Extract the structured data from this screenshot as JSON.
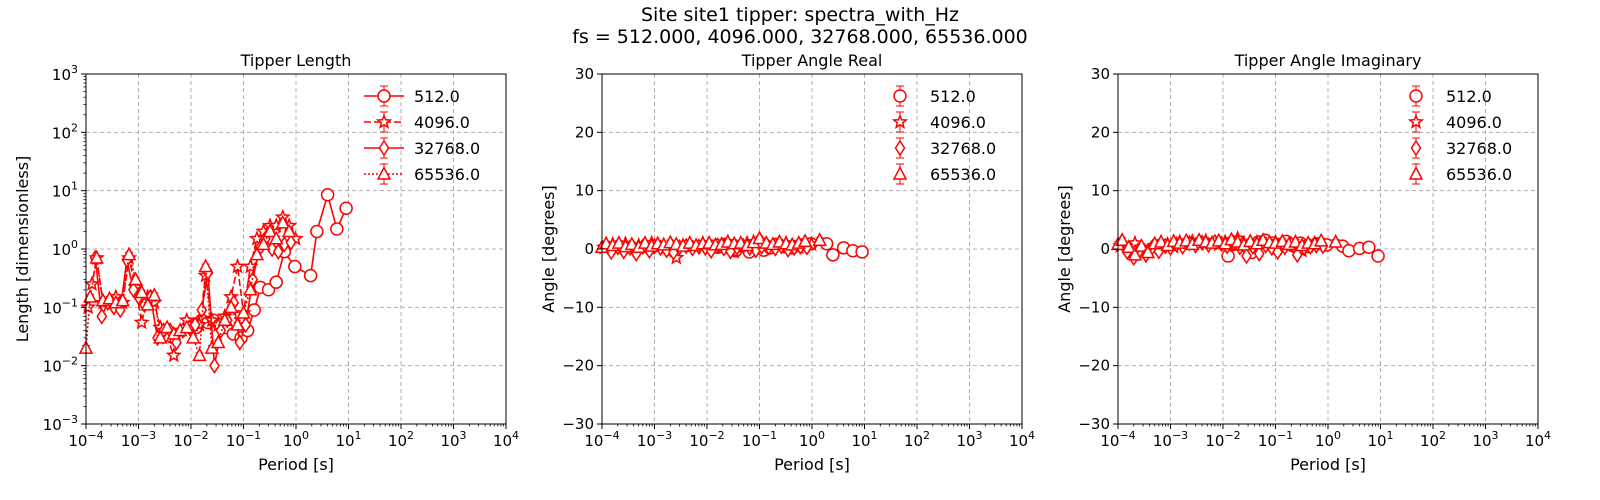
{
  "figure": {
    "title_line1": "Site site1 tipper: spectra_with_Hz",
    "title_line2": "fs = 512.000, 4096.000, 32768.000, 65536.000"
  },
  "colors": {
    "series": "#ff0000",
    "grid": "#b0b0b0",
    "axis": "#000000"
  },
  "chart_data": [
    {
      "type": "line",
      "title": "Tipper Length",
      "xlabel": "Period [s]",
      "ylabel": "Length [dimensionless]",
      "xscale": "log",
      "yscale": "log",
      "xlim": [
        0.0001,
        10000
      ],
      "ylim": [
        0.001,
        1000
      ],
      "xticks": [
        0.0001,
        0.001,
        0.01,
        0.1,
        1,
        10,
        100,
        1000,
        10000
      ],
      "yticks": [
        0.001,
        0.01,
        0.1,
        1,
        10,
        100,
        1000
      ],
      "xtick_labels": [
        {
          "base": "10",
          "exp": "−4"
        },
        {
          "base": "10",
          "exp": "−3"
        },
        {
          "base": "10",
          "exp": "−2"
        },
        {
          "base": "10",
          "exp": "−1"
        },
        {
          "base": "10",
          "exp": "0"
        },
        {
          "base": "10",
          "exp": "1"
        },
        {
          "base": "10",
          "exp": "2"
        },
        {
          "base": "10",
          "exp": "3"
        },
        {
          "base": "10",
          "exp": "4"
        }
      ],
      "ytick_labels": [
        {
          "base": "10",
          "exp": "−3"
        },
        {
          "base": "10",
          "exp": "−2"
        },
        {
          "base": "10",
          "exp": "−1"
        },
        {
          "base": "10",
          "exp": "0"
        },
        {
          "base": "10",
          "exp": "1"
        },
        {
          "base": "10",
          "exp": "2"
        },
        {
          "base": "10",
          "exp": "3"
        }
      ],
      "grid": true,
      "legend": "top-right",
      "series": [
        {
          "name": "512.0",
          "marker": "circle",
          "linestyle": "solid",
          "x": [
            0.0125,
            0.016,
            0.021,
            0.027,
            0.035,
            0.047,
            0.064,
            0.09,
            0.12,
            0.16,
            0.21,
            0.3,
            0.42,
            0.6,
            0.95,
            1.9,
            2.5,
            4.0,
            6.0,
            9.0
          ],
          "y": [
            0.045,
            0.06,
            0.055,
            0.06,
            0.05,
            0.045,
            0.035,
            0.03,
            0.04,
            0.09,
            0.22,
            0.2,
            0.27,
            0.9,
            0.5,
            0.35,
            2.0,
            8.5,
            2.2,
            5.0
          ]
        },
        {
          "name": "4096.0",
          "marker": "star",
          "linestyle": "dashed",
          "x": [
            0.00011,
            0.00013,
            0.00016,
            0.00021,
            0.00028,
            0.00037,
            0.0005,
            0.00066,
            0.00088,
            0.00115,
            0.0015,
            0.002,
            0.0026,
            0.0035,
            0.0047,
            0.0062,
            0.0083,
            0.011,
            0.0145,
            0.019,
            0.025,
            0.033,
            0.044,
            0.058,
            0.077,
            0.1,
            0.135,
            0.18,
            0.24,
            0.32,
            0.42,
            0.56,
            0.74,
            0.98
          ],
          "y": [
            0.1,
            0.25,
            0.7,
            0.12,
            0.13,
            0.15,
            0.12,
            0.7,
            0.22,
            0.055,
            0.15,
            0.12,
            0.045,
            0.03,
            0.015,
            0.04,
            0.06,
            0.05,
            0.05,
            0.35,
            0.06,
            0.05,
            0.07,
            0.15,
            0.5,
            0.08,
            0.5,
            1.5,
            2.0,
            2.5,
            2.5,
            3.5,
            2.5,
            1.5
          ]
        },
        {
          "name": "32768.0",
          "marker": "diamond",
          "linestyle": "solid",
          "x": [
            0.00015,
            0.0002,
            0.00026,
            0.00034,
            0.00045,
            0.0006,
            0.0008,
            0.001,
            0.0013,
            0.0017,
            0.0023,
            0.003,
            0.004,
            0.0053,
            0.007,
            0.0093,
            0.012,
            0.016,
            0.021,
            0.028,
            0.037,
            0.049,
            0.065,
            0.085,
            0.11,
            0.15,
            0.2,
            0.26,
            0.35,
            0.46,
            0.6,
            0.8
          ],
          "y": [
            0.7,
            0.07,
            0.12,
            0.1,
            0.09,
            0.65,
            0.2,
            0.15,
            0.11,
            0.15,
            0.03,
            0.04,
            0.04,
            0.025,
            0.04,
            0.045,
            0.05,
            0.09,
            0.4,
            0.01,
            0.04,
            0.06,
            0.12,
            0.025,
            0.05,
            0.3,
            1.0,
            1.5,
            1.0,
            0.9,
            1.2,
            1.3
          ]
        },
        {
          "name": "65536.0",
          "marker": "triangle",
          "linestyle": "dotted",
          "x": [
            0.0001,
            0.00012,
            0.00016,
            0.00021,
            0.00028,
            0.00037,
            0.0005,
            0.00066,
            0.00088,
            0.00115,
            0.0015,
            0.002,
            0.0026,
            0.0035,
            0.0047,
            0.0062,
            0.0083,
            0.011,
            0.0145,
            0.019,
            0.025,
            0.033,
            0.044,
            0.058,
            0.077,
            0.1,
            0.135,
            0.18,
            0.24,
            0.32,
            0.42,
            0.56,
            0.74
          ],
          "y": [
            0.02,
            0.15,
            0.7,
            0.13,
            0.14,
            0.12,
            0.13,
            0.8,
            0.3,
            0.18,
            0.11,
            0.16,
            0.03,
            0.045,
            0.035,
            0.04,
            0.045,
            0.03,
            0.015,
            0.5,
            0.02,
            0.025,
            0.06,
            0.1,
            0.05,
            0.08,
            0.2,
            0.8,
            1.2,
            2.0,
            1.5,
            2.8,
            2.0
          ]
        }
      ]
    },
    {
      "type": "line",
      "title": "Tipper Angle Real",
      "xlabel": "Period [s]",
      "ylabel": "Angle [degrees]",
      "xscale": "log",
      "yscale": "linear",
      "xlim": [
        0.0001,
        10000
      ],
      "ylim": [
        -30,
        30
      ],
      "xticks": [
        0.0001,
        0.001,
        0.01,
        0.1,
        1,
        10,
        100,
        1000,
        10000
      ],
      "yticks": [
        -30,
        -20,
        -10,
        0,
        10,
        20,
        30
      ],
      "xtick_labels": [
        {
          "base": "10",
          "exp": "−4"
        },
        {
          "base": "10",
          "exp": "−3"
        },
        {
          "base": "10",
          "exp": "−2"
        },
        {
          "base": "10",
          "exp": "−1"
        },
        {
          "base": "10",
          "exp": "0"
        },
        {
          "base": "10",
          "exp": "1"
        },
        {
          "base": "10",
          "exp": "2"
        },
        {
          "base": "10",
          "exp": "3"
        },
        {
          "base": "10",
          "exp": "4"
        }
      ],
      "ytick_labels": [
        "−30",
        "−20",
        "−10",
        "0",
        "10",
        "20",
        "30"
      ],
      "grid": true,
      "legend": "top-right",
      "series": [
        {
          "name": "512.0",
          "marker": "circle",
          "linestyle": "none",
          "x": [
            0.0125,
            0.016,
            0.021,
            0.027,
            0.035,
            0.047,
            0.064,
            0.09,
            0.12,
            0.16,
            0.21,
            0.3,
            0.42,
            0.6,
            0.95,
            1.9,
            2.5,
            4.0,
            6.0,
            9.0
          ],
          "y": [
            0.5,
            0.3,
            0.8,
            0.2,
            -0.3,
            0.5,
            -0.5,
            0.3,
            -0.2,
            0.2,
            0.8,
            0.4,
            0.2,
            0.7,
            0.9,
            0.9,
            -1.0,
            0.2,
            -0.3,
            -0.5
          ]
        },
        {
          "name": "4096.0",
          "marker": "star",
          "linestyle": "none",
          "x": [
            0.00011,
            0.00016,
            0.00021,
            0.00028,
            0.00037,
            0.0005,
            0.00066,
            0.00088,
            0.00115,
            0.0015,
            0.002,
            0.0026,
            0.0035,
            0.0047,
            0.0062,
            0.0083,
            0.011,
            0.0145,
            0.019,
            0.025,
            0.033,
            0.044,
            0.058,
            0.077,
            0.1,
            0.135,
            0.18,
            0.24,
            0.32,
            0.42,
            0.56,
            0.74,
            0.98
          ],
          "y": [
            0.2,
            0.8,
            0.5,
            0.9,
            0.3,
            0.6,
            0.4,
            1.0,
            0.2,
            0.7,
            -0.2,
            -1.5,
            0.6,
            0.8,
            0.3,
            1.0,
            0.5,
            0.4,
            0.7,
            1.2,
            -0.5,
            0.6,
            1.0,
            1.2,
            1.5,
            0.8,
            0.6,
            0.4,
            1.0,
            0.5,
            0.3,
            0.7,
            0.8
          ]
        },
        {
          "name": "32768.0",
          "marker": "diamond",
          "linestyle": "none",
          "x": [
            0.00015,
            0.0002,
            0.00026,
            0.00034,
            0.00045,
            0.0006,
            0.0008,
            0.001,
            0.0013,
            0.0017,
            0.0023,
            0.003,
            0.004,
            0.0053,
            0.007,
            0.0093,
            0.012,
            0.016,
            0.021,
            0.028,
            0.037,
            0.049,
            0.065,
            0.085,
            0.11,
            0.15,
            0.2,
            0.26,
            0.35,
            0.46,
            0.6,
            0.8
          ],
          "y": [
            -0.5,
            0.3,
            -0.4,
            0.2,
            -0.8,
            0.4,
            -0.3,
            0.5,
            0.2,
            -0.2,
            -0.6,
            0.3,
            0.5,
            0.1,
            0.4,
            0.2,
            -0.3,
            0.6,
            0.1,
            -0.4,
            0.3,
            0.5,
            0.2,
            -0.2,
            0.4,
            0.3,
            0.1,
            0.5,
            -0.1,
            0.2,
            0.4,
            0.3
          ]
        },
        {
          "name": "65536.0",
          "marker": "triangle",
          "linestyle": "none",
          "x": [
            0.0001,
            0.00012,
            0.00016,
            0.00021,
            0.00028,
            0.00037,
            0.0005,
            0.00066,
            0.00088,
            0.00115,
            0.0015,
            0.002,
            0.0026,
            0.0035,
            0.0047,
            0.0062,
            0.0083,
            0.011,
            0.0145,
            0.019,
            0.025,
            0.033,
            0.044,
            0.058,
            0.077,
            0.1,
            0.135,
            0.18,
            0.24,
            0.32,
            0.42,
            0.56,
            0.74,
            1.4
          ],
          "y": [
            0.3,
            0.9,
            0.6,
            1.0,
            0.4,
            0.8,
            0.3,
            1.0,
            0.5,
            0.9,
            0.7,
            1.1,
            0.8,
            0.5,
            1.0,
            0.6,
            0.9,
            1.0,
            0.7,
            0.8,
            1.2,
            0.9,
            1.0,
            0.6,
            1.1,
            1.8,
            1.0,
            0.8,
            1.2,
            0.9,
            0.7,
            1.0,
            1.3,
            1.5
          ]
        }
      ]
    },
    {
      "type": "line",
      "title": "Tipper Angle Imaginary",
      "xlabel": "Period [s]",
      "ylabel": "Angle [degrees]",
      "xscale": "log",
      "yscale": "linear",
      "xlim": [
        0.0001,
        10000
      ],
      "ylim": [
        -30,
        30
      ],
      "xticks": [
        0.0001,
        0.001,
        0.01,
        0.1,
        1,
        10,
        100,
        1000,
        10000
      ],
      "yticks": [
        -30,
        -20,
        -10,
        0,
        10,
        20,
        30
      ],
      "xtick_labels": [
        {
          "base": "10",
          "exp": "−4"
        },
        {
          "base": "10",
          "exp": "−3"
        },
        {
          "base": "10",
          "exp": "−2"
        },
        {
          "base": "10",
          "exp": "−1"
        },
        {
          "base": "10",
          "exp": "0"
        },
        {
          "base": "10",
          "exp": "1"
        },
        {
          "base": "10",
          "exp": "2"
        },
        {
          "base": "10",
          "exp": "3"
        },
        {
          "base": "10",
          "exp": "4"
        }
      ],
      "ytick_labels": [
        "−30",
        "−20",
        "−10",
        "0",
        "10",
        "20",
        "30"
      ],
      "grid": true,
      "legend": "top-right",
      "series": [
        {
          "name": "512.0",
          "marker": "circle",
          "linestyle": "none",
          "x": [
            0.0125,
            0.016,
            0.021,
            0.027,
            0.035,
            0.047,
            0.064,
            0.09,
            0.12,
            0.16,
            0.21,
            0.3,
            0.42,
            0.6,
            0.95,
            1.9,
            2.5,
            4.0,
            6.0,
            9.0
          ],
          "y": [
            -1.2,
            0.8,
            1.0,
            0.5,
            -0.6,
            1.2,
            1.5,
            1.0,
            0.8,
            1.3,
            0.6,
            1.0,
            0.4,
            0.9,
            0.7,
            0.5,
            -0.3,
            0.1,
            0.3,
            -1.2
          ]
        },
        {
          "name": "4096.0",
          "marker": "star",
          "linestyle": "none",
          "x": [
            0.00011,
            0.00016,
            0.00021,
            0.00028,
            0.00037,
            0.0005,
            0.00066,
            0.00088,
            0.00115,
            0.0015,
            0.002,
            0.0026,
            0.0035,
            0.0047,
            0.0062,
            0.0083,
            0.011,
            0.0145,
            0.019,
            0.025,
            0.033,
            0.044,
            0.058,
            0.077,
            0.1,
            0.135,
            0.18,
            0.24,
            0.32,
            0.42,
            0.56
          ],
          "y": [
            0.5,
            0.2,
            1.0,
            0.3,
            -0.5,
            0.6,
            1.1,
            0.8,
            0.4,
            1.2,
            1.0,
            1.3,
            0.9,
            1.4,
            1.0,
            0.8,
            1.2,
            1.5,
            1.8,
            1.0,
            0.6,
            1.1,
            1.3,
            0.9,
            1.2,
            1.0,
            0.4,
            0.8,
            -0.3,
            0.5,
            1.0
          ]
        },
        {
          "name": "32768.0",
          "marker": "diamond",
          "linestyle": "none",
          "x": [
            0.00015,
            0.0002,
            0.00026,
            0.00034,
            0.00045,
            0.0006,
            0.0008,
            0.001,
            0.0013,
            0.0017,
            0.0023,
            0.003,
            0.004,
            0.0053,
            0.007,
            0.0093,
            0.012,
            0.016,
            0.021,
            0.028,
            0.037,
            0.049,
            0.065,
            0.085,
            0.11,
            0.15,
            0.2,
            0.26,
            0.35,
            0.46,
            0.6,
            0.8
          ],
          "y": [
            -0.5,
            -1.5,
            -0.2,
            -1.0,
            0.3,
            -0.4,
            0.5,
            0.2,
            0.8,
            0.4,
            1.0,
            0.6,
            1.1,
            0.7,
            1.2,
            0.9,
            0.5,
            1.0,
            0.3,
            -1.2,
            0.4,
            -0.8,
            0.6,
            0.2,
            -0.5,
            0.3,
            0.8,
            -1.0,
            0.2,
            0.4,
            0.6,
            0.5
          ]
        },
        {
          "name": "65536.0",
          "marker": "triangle",
          "linestyle": "none",
          "x": [
            0.0001,
            0.00012,
            0.00016,
            0.00021,
            0.00028,
            0.00037,
            0.0005,
            0.00066,
            0.00088,
            0.00115,
            0.0015,
            0.002,
            0.0026,
            0.0035,
            0.0047,
            0.0062,
            0.0083,
            0.011,
            0.0145,
            0.019,
            0.025,
            0.033,
            0.044,
            0.058,
            0.077,
            0.1,
            0.135,
            0.18,
            0.24,
            0.32,
            0.42,
            0.56,
            0.74,
            1.4
          ],
          "y": [
            0.8,
            1.5,
            0.3,
            -1.0,
            0.5,
            -0.6,
            0.9,
            1.2,
            0.6,
            1.3,
            1.0,
            1.4,
            0.8,
            1.5,
            1.2,
            1.0,
            1.4,
            0.9,
            1.6,
            1.2,
            0.7,
            1.3,
            0.9,
            1.5,
            1.1,
            1.0,
            1.3,
            0.8,
            1.2,
            0.6,
            1.0,
            0.9,
            1.4,
            1.2
          ]
        }
      ]
    }
  ]
}
